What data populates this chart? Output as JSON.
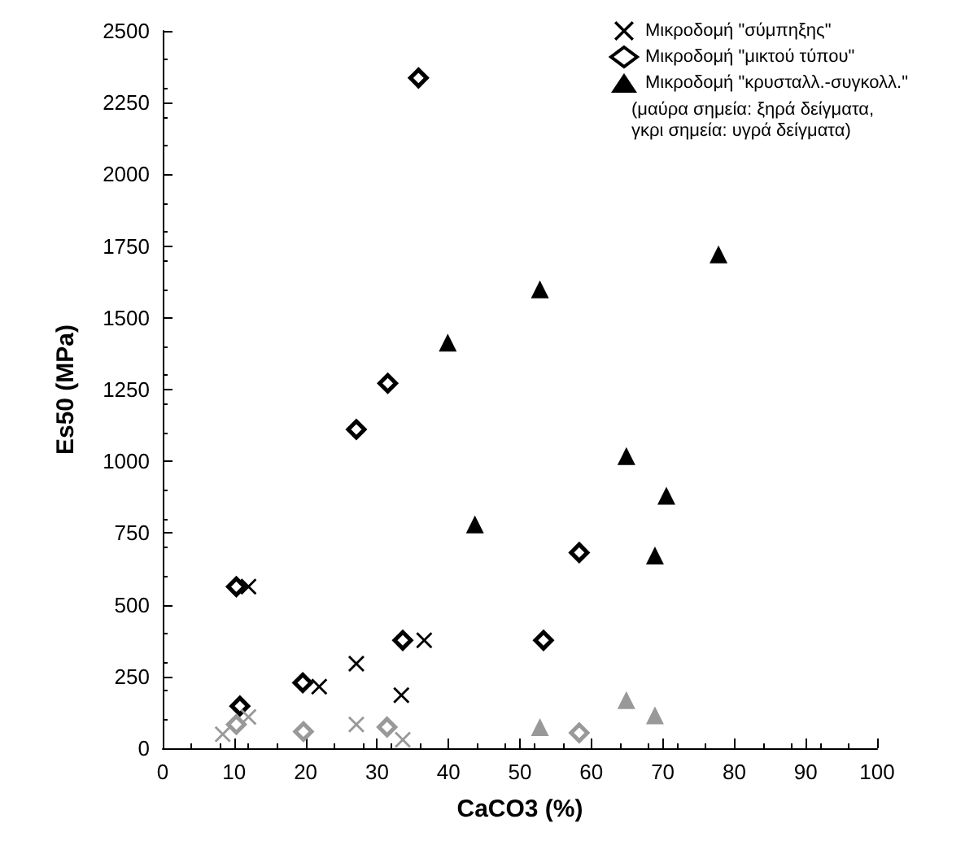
{
  "chart_data": {
    "type": "scatter",
    "xlabel": "CaCO3 (%)",
    "ylabel": "Es50 (MPa)",
    "xlim": [
      0,
      100
    ],
    "xticks": [
      0,
      10,
      20,
      30,
      40,
      50,
      60,
      70,
      80,
      90,
      100
    ],
    "ylim": [
      0,
      2500
    ],
    "yticks": [
      0,
      250,
      500,
      750,
      1000,
      1250,
      1500,
      1750,
      2000,
      2250,
      2500
    ],
    "grid": false,
    "legend": "top right",
    "annotations": [
      "(μαύρα σημεία: ξηρά δείγματα,\nγκρι σημεία: υγρά δείγματα)"
    ],
    "series": [
      {
        "name": "Μικροδομή \"σύμπηξης\"",
        "color": "#000000",
        "marker": "cross",
        "x": [
          12.0,
          21.9,
          27.1,
          33.4,
          36.6
        ],
        "values": [
          563,
          215,
          295,
          185,
          376
        ]
      },
      {
        "name": "Μικροδομή \"μικτού τύπου\"",
        "color": "#000000",
        "marker": "diamond",
        "x": [
          10.3,
          10.8,
          19.6,
          27.1,
          31.5,
          33.6,
          35.8,
          53.3,
          58.3
        ],
        "values": [
          563,
          147,
          228,
          1111,
          1272,
          376,
          2336,
          376,
          682
        ]
      },
      {
        "name": "Μικροδομή \"κρυσταλλ.-συγκολλ.\"",
        "color": "#000000",
        "marker": "triangle",
        "x": [
          39.9,
          43.7,
          52.8,
          64.9,
          68.9,
          70.5,
          77.8
        ],
        "values": [
          1414,
          780,
          1599,
          1018,
          672,
          880,
          1721
        ]
      },
      {
        "color": "#999999",
        "marker": "cross",
        "x": [
          8.4,
          12.0,
          27.1,
          33.6
        ],
        "values": [
          49,
          109,
          83,
          30
        ]
      },
      {
        "color": "#999999",
        "marker": "diamond",
        "x": [
          10.3,
          19.7,
          31.4,
          58.3
        ],
        "values": [
          83,
          58,
          74,
          54
        ]
      },
      {
        "color": "#999999",
        "marker": "triangle",
        "x": [
          52.8,
          64.9,
          68.9
        ],
        "values": [
          74,
          168,
          115
        ]
      }
    ]
  }
}
